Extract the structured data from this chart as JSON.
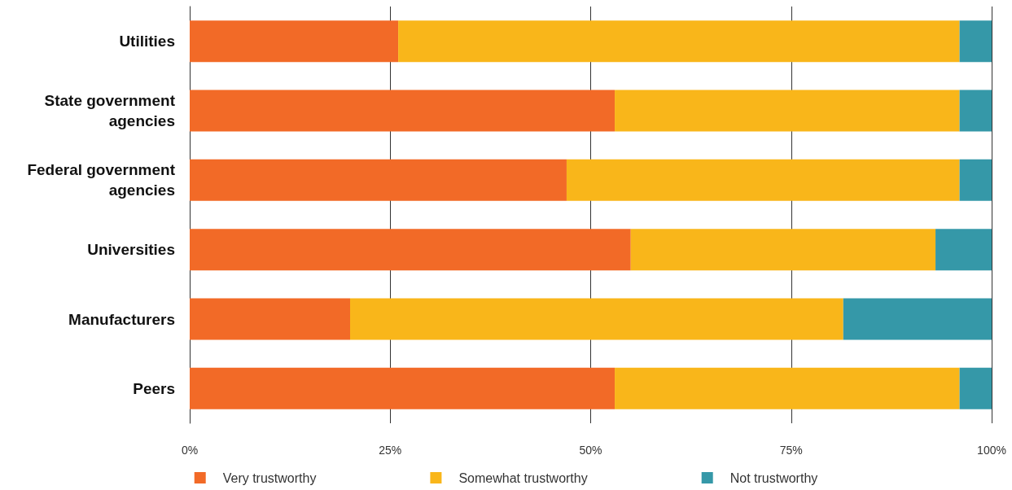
{
  "chart_data": {
    "type": "bar",
    "orientation": "horizontal",
    "stacked": true,
    "categories": [
      "Utilities",
      "State government\nagencies",
      "Federal government\nagencies",
      "Universities",
      "Manufacturers",
      "Peers"
    ],
    "series": [
      {
        "name": "Very trustworthy",
        "color": "#f26a27",
        "values": [
          26,
          53,
          47,
          55,
          20,
          53
        ]
      },
      {
        "name": "Somewhat trustworthy",
        "color": "#f9b61a",
        "values": [
          70,
          43,
          49,
          38,
          61.5,
          43
        ]
      },
      {
        "name": "Not trustworthy",
        "color": "#3598a8",
        "values": [
          4,
          4,
          4,
          7,
          18.5,
          4
        ]
      }
    ],
    "xlim": [
      0,
      100
    ],
    "xticks": [
      {
        "value": 0,
        "label": "0%"
      },
      {
        "value": 25,
        "label": "25%"
      },
      {
        "value": 50,
        "label": "50%"
      },
      {
        "value": 75,
        "label": "75%"
      },
      {
        "value": 100,
        "label": "100%"
      }
    ],
    "grid": "x",
    "legend": "bottom"
  }
}
